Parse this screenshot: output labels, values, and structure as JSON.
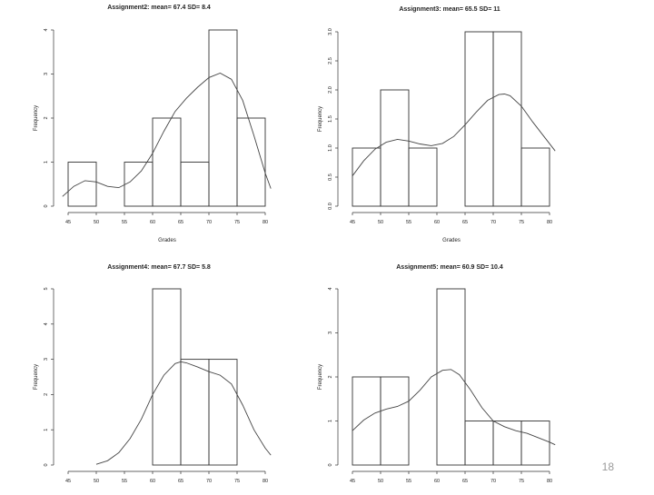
{
  "slide_number": "18",
  "chart_data": [
    {
      "type": "histogram",
      "title": "Assignment2: mean= 67.4 SD= 8.4",
      "xlabel": "Grades",
      "ylabel": "Frequency",
      "xlim": [
        45,
        80
      ],
      "ylim": [
        0,
        4
      ],
      "x_ticks": [
        "45",
        "50",
        "55",
        "60",
        "65",
        "70",
        "75",
        "80"
      ],
      "y_ticks": [
        "0",
        "1",
        "2",
        "3",
        "4"
      ],
      "bins": [
        [
          45,
          50
        ],
        [
          50,
          55
        ],
        [
          55,
          60
        ],
        [
          60,
          65
        ],
        [
          65,
          70
        ],
        [
          70,
          75
        ],
        [
          75,
          80
        ]
      ],
      "counts": [
        1,
        0,
        1,
        2,
        1,
        4,
        2
      ],
      "density_curve": {
        "x": [
          44,
          46,
          48,
          50,
          52,
          54,
          56,
          58,
          60,
          62,
          64,
          66,
          68,
          70,
          72,
          74,
          76,
          78,
          80,
          81
        ],
        "y": [
          0.22,
          0.45,
          0.58,
          0.55,
          0.45,
          0.42,
          0.55,
          0.8,
          1.2,
          1.7,
          2.15,
          2.45,
          2.7,
          2.92,
          3.02,
          2.88,
          2.4,
          1.6,
          0.75,
          0.4
        ]
      }
    },
    {
      "type": "histogram",
      "title": "Assignment3: mean= 65.5 SD= 11",
      "xlabel": "Grades",
      "ylabel": "Frequency",
      "xlim": [
        45,
        80
      ],
      "ylim": [
        0,
        3
      ],
      "x_ticks": [
        "45",
        "50",
        "55",
        "60",
        "65",
        "70",
        "75",
        "80"
      ],
      "y_ticks": [
        "0.0",
        "0.5",
        "1.0",
        "1.5",
        "2.0",
        "2.5",
        "3.0"
      ],
      "bins": [
        [
          45,
          50
        ],
        [
          50,
          55
        ],
        [
          55,
          60
        ],
        [
          60,
          65
        ],
        [
          65,
          70
        ],
        [
          70,
          75
        ],
        [
          75,
          80
        ]
      ],
      "counts": [
        1,
        2,
        1,
        0,
        3,
        3,
        1
      ],
      "density_curve": {
        "x": [
          45,
          47,
          49,
          51,
          53,
          55,
          57,
          59,
          61,
          63,
          65,
          67,
          69,
          71,
          72,
          73,
          75,
          77,
          79,
          81
        ],
        "y": [
          0.52,
          0.78,
          0.98,
          1.1,
          1.15,
          1.12,
          1.07,
          1.04,
          1.08,
          1.2,
          1.4,
          1.62,
          1.82,
          1.92,
          1.93,
          1.9,
          1.72,
          1.45,
          1.2,
          0.95
        ]
      }
    },
    {
      "type": "histogram",
      "title": "Assignment4: mean= 67.7 SD= 5.8",
      "xlabel": "",
      "ylabel": "Frequency",
      "xlim": [
        45,
        80
      ],
      "ylim": [
        0,
        5
      ],
      "x_ticks": [
        "45",
        "50",
        "55",
        "60",
        "65",
        "70",
        "75",
        "80"
      ],
      "y_ticks": [
        "0",
        "1",
        "2",
        "3",
        "4",
        "5"
      ],
      "bins": [
        [
          60,
          65
        ],
        [
          65,
          70
        ],
        [
          70,
          75
        ]
      ],
      "counts": [
        5,
        3,
        3
      ],
      "density_curve": {
        "x": [
          50,
          52,
          54,
          56,
          58,
          60,
          62,
          64,
          65,
          66,
          68,
          70,
          72,
          74,
          76,
          78,
          80,
          81
        ],
        "y": [
          0.02,
          0.12,
          0.35,
          0.75,
          1.3,
          2.0,
          2.55,
          2.88,
          2.93,
          2.9,
          2.78,
          2.65,
          2.55,
          2.3,
          1.7,
          1.0,
          0.48,
          0.28
        ]
      }
    },
    {
      "type": "histogram",
      "title": "Assignment5: mean= 60.9 SD= 10.4",
      "xlabel": "",
      "ylabel": "Frequency",
      "xlim": [
        45,
        80
      ],
      "ylim": [
        0,
        4
      ],
      "x_ticks": [
        "45",
        "50",
        "55",
        "60",
        "65",
        "70",
        "75",
        "80"
      ],
      "y_ticks": [
        "0",
        "1",
        "2",
        "3",
        "4"
      ],
      "bins": [
        [
          45,
          50
        ],
        [
          50,
          55
        ],
        [
          55,
          60
        ],
        [
          60,
          65
        ],
        [
          65,
          70
        ],
        [
          70,
          75
        ],
        [
          75,
          80
        ]
      ],
      "counts": [
        2,
        2,
        0,
        4,
        1,
        1,
        1
      ],
      "density_curve": {
        "x": [
          45,
          47,
          49,
          51,
          53,
          55,
          57,
          59,
          61,
          62.5,
          64,
          66,
          68,
          70,
          72,
          74,
          76,
          78,
          80,
          81
        ],
        "y": [
          0.78,
          1.02,
          1.18,
          1.27,
          1.33,
          1.45,
          1.7,
          2.0,
          2.15,
          2.17,
          2.05,
          1.7,
          1.3,
          1.0,
          0.87,
          0.78,
          0.72,
          0.62,
          0.52,
          0.46
        ]
      }
    }
  ]
}
